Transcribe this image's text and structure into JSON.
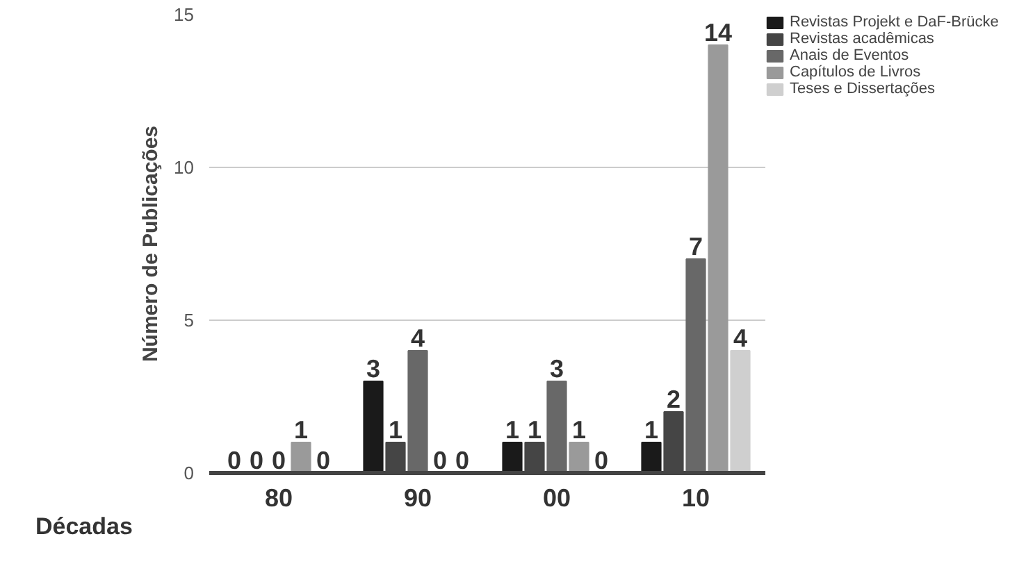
{
  "chart_data": {
    "type": "bar",
    "xlabel": "Décadas",
    "ylabel": "Número de Publicações",
    "categories": [
      "80",
      "90",
      "00",
      "10"
    ],
    "series": [
      {
        "name": "Revistas Projekt e DaF-Brücke",
        "color": "#1a1a1a",
        "values": [
          0,
          3,
          1,
          1
        ]
      },
      {
        "name": "Revistas acadêmicas",
        "color": "#454545",
        "values": [
          0,
          1,
          1,
          2
        ]
      },
      {
        "name": "Anais de Eventos",
        "color": "#686868",
        "values": [
          0,
          4,
          3,
          7
        ]
      },
      {
        "name": "Capítulos de Livros",
        "color": "#9a9a9a",
        "values": [
          1,
          0,
          1,
          14
        ]
      },
      {
        "name": "Teses e Dissertações",
        "color": "#cfcfcf",
        "values": [
          0,
          0,
          0,
          4
        ]
      }
    ],
    "ylim": [
      0,
      15
    ],
    "yticks": [
      0,
      5,
      10,
      15
    ],
    "grid": "y",
    "legend": "top right",
    "data_labels": true
  }
}
